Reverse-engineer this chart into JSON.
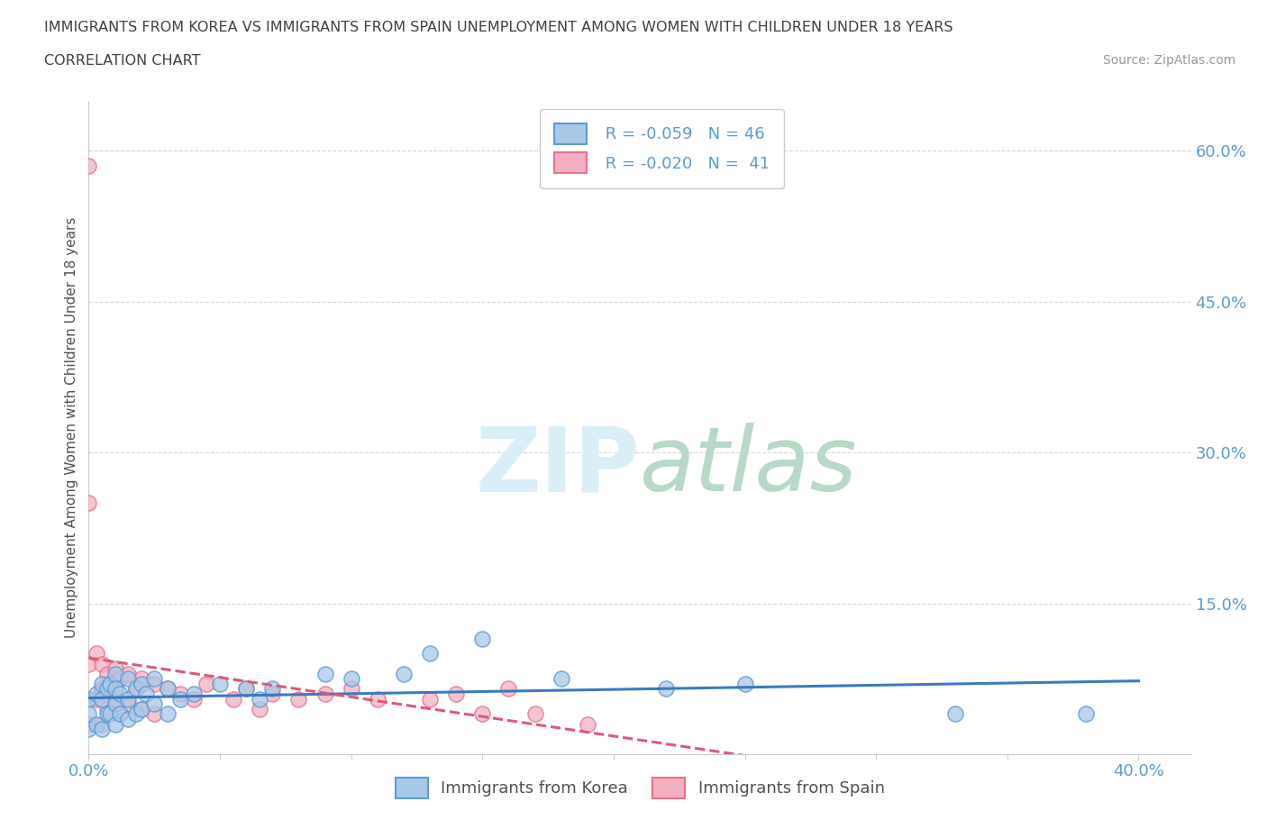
{
  "title_line1": "IMMIGRANTS FROM KOREA VS IMMIGRANTS FROM SPAIN UNEMPLOYMENT AMONG WOMEN WITH CHILDREN UNDER 18 YEARS",
  "title_line2": "CORRELATION CHART",
  "source_text": "Source: ZipAtlas.com",
  "ylabel": "Unemployment Among Women with Children Under 18 years",
  "xlim": [
    0.0,
    0.42
  ],
  "ylim": [
    0.0,
    0.65
  ],
  "xticks": [
    0.0,
    0.05,
    0.1,
    0.15,
    0.2,
    0.25,
    0.3,
    0.35,
    0.4
  ],
  "xtick_labels": [
    "0.0%",
    "",
    "",
    "",
    "",
    "",
    "",
    "",
    "40.0%"
  ],
  "ytick_positions": [
    0.0,
    0.15,
    0.3,
    0.45,
    0.6
  ],
  "ytick_labels": [
    "",
    "15.0%",
    "30.0%",
    "45.0%",
    "60.0%"
  ],
  "legend_korea_R": "R = -0.059",
  "legend_korea_N": "N = 46",
  "legend_spain_R": "R = -0.020",
  "legend_spain_N": "N =  41",
  "korea_color": "#a8c8e8",
  "spain_color": "#f4b0c0",
  "korea_edge_color": "#5b9bd5",
  "spain_edge_color": "#e87090",
  "korea_trend_color": "#3a7abf",
  "spain_trend_color": "#e05878",
  "watermark_color": "#daeef8",
  "background_color": "#ffffff",
  "grid_color": "#d8d8d8",
  "title_color": "#404040",
  "axis_label_color": "#505050",
  "tick_label_color": "#5b9bd5",
  "legend_text_color": "#5b9bd5",
  "korea_scatter_x": [
    0.0,
    0.0,
    0.0,
    0.003,
    0.003,
    0.005,
    0.005,
    0.005,
    0.007,
    0.007,
    0.008,
    0.008,
    0.01,
    0.01,
    0.01,
    0.01,
    0.012,
    0.012,
    0.015,
    0.015,
    0.015,
    0.018,
    0.018,
    0.02,
    0.02,
    0.022,
    0.025,
    0.025,
    0.03,
    0.03,
    0.035,
    0.04,
    0.05,
    0.06,
    0.065,
    0.07,
    0.09,
    0.1,
    0.12,
    0.13,
    0.15,
    0.18,
    0.22,
    0.25,
    0.33,
    0.38
  ],
  "korea_scatter_y": [
    0.055,
    0.04,
    0.025,
    0.06,
    0.03,
    0.07,
    0.055,
    0.025,
    0.065,
    0.04,
    0.07,
    0.04,
    0.08,
    0.065,
    0.05,
    0.03,
    0.06,
    0.04,
    0.075,
    0.055,
    0.035,
    0.065,
    0.04,
    0.07,
    0.045,
    0.06,
    0.075,
    0.05,
    0.065,
    0.04,
    0.055,
    0.06,
    0.07,
    0.065,
    0.055,
    0.065,
    0.08,
    0.075,
    0.08,
    0.1,
    0.115,
    0.075,
    0.065,
    0.07,
    0.04,
    0.04
  ],
  "spain_scatter_x": [
    0.0,
    0.0,
    0.0,
    0.0,
    0.003,
    0.003,
    0.005,
    0.005,
    0.005,
    0.007,
    0.007,
    0.008,
    0.01,
    0.01,
    0.012,
    0.012,
    0.015,
    0.015,
    0.018,
    0.02,
    0.02,
    0.025,
    0.025,
    0.03,
    0.035,
    0.04,
    0.045,
    0.055,
    0.06,
    0.065,
    0.07,
    0.08,
    0.09,
    0.1,
    0.11,
    0.13,
    0.14,
    0.15,
    0.16,
    0.17,
    0.19
  ],
  "spain_scatter_y": [
    0.585,
    0.25,
    0.09,
    0.03,
    0.1,
    0.055,
    0.09,
    0.065,
    0.03,
    0.08,
    0.045,
    0.07,
    0.085,
    0.055,
    0.075,
    0.04,
    0.08,
    0.05,
    0.065,
    0.075,
    0.045,
    0.07,
    0.04,
    0.065,
    0.06,
    0.055,
    0.07,
    0.055,
    0.065,
    0.045,
    0.06,
    0.055,
    0.06,
    0.065,
    0.055,
    0.055,
    0.06,
    0.04,
    0.065,
    0.04,
    0.03
  ]
}
